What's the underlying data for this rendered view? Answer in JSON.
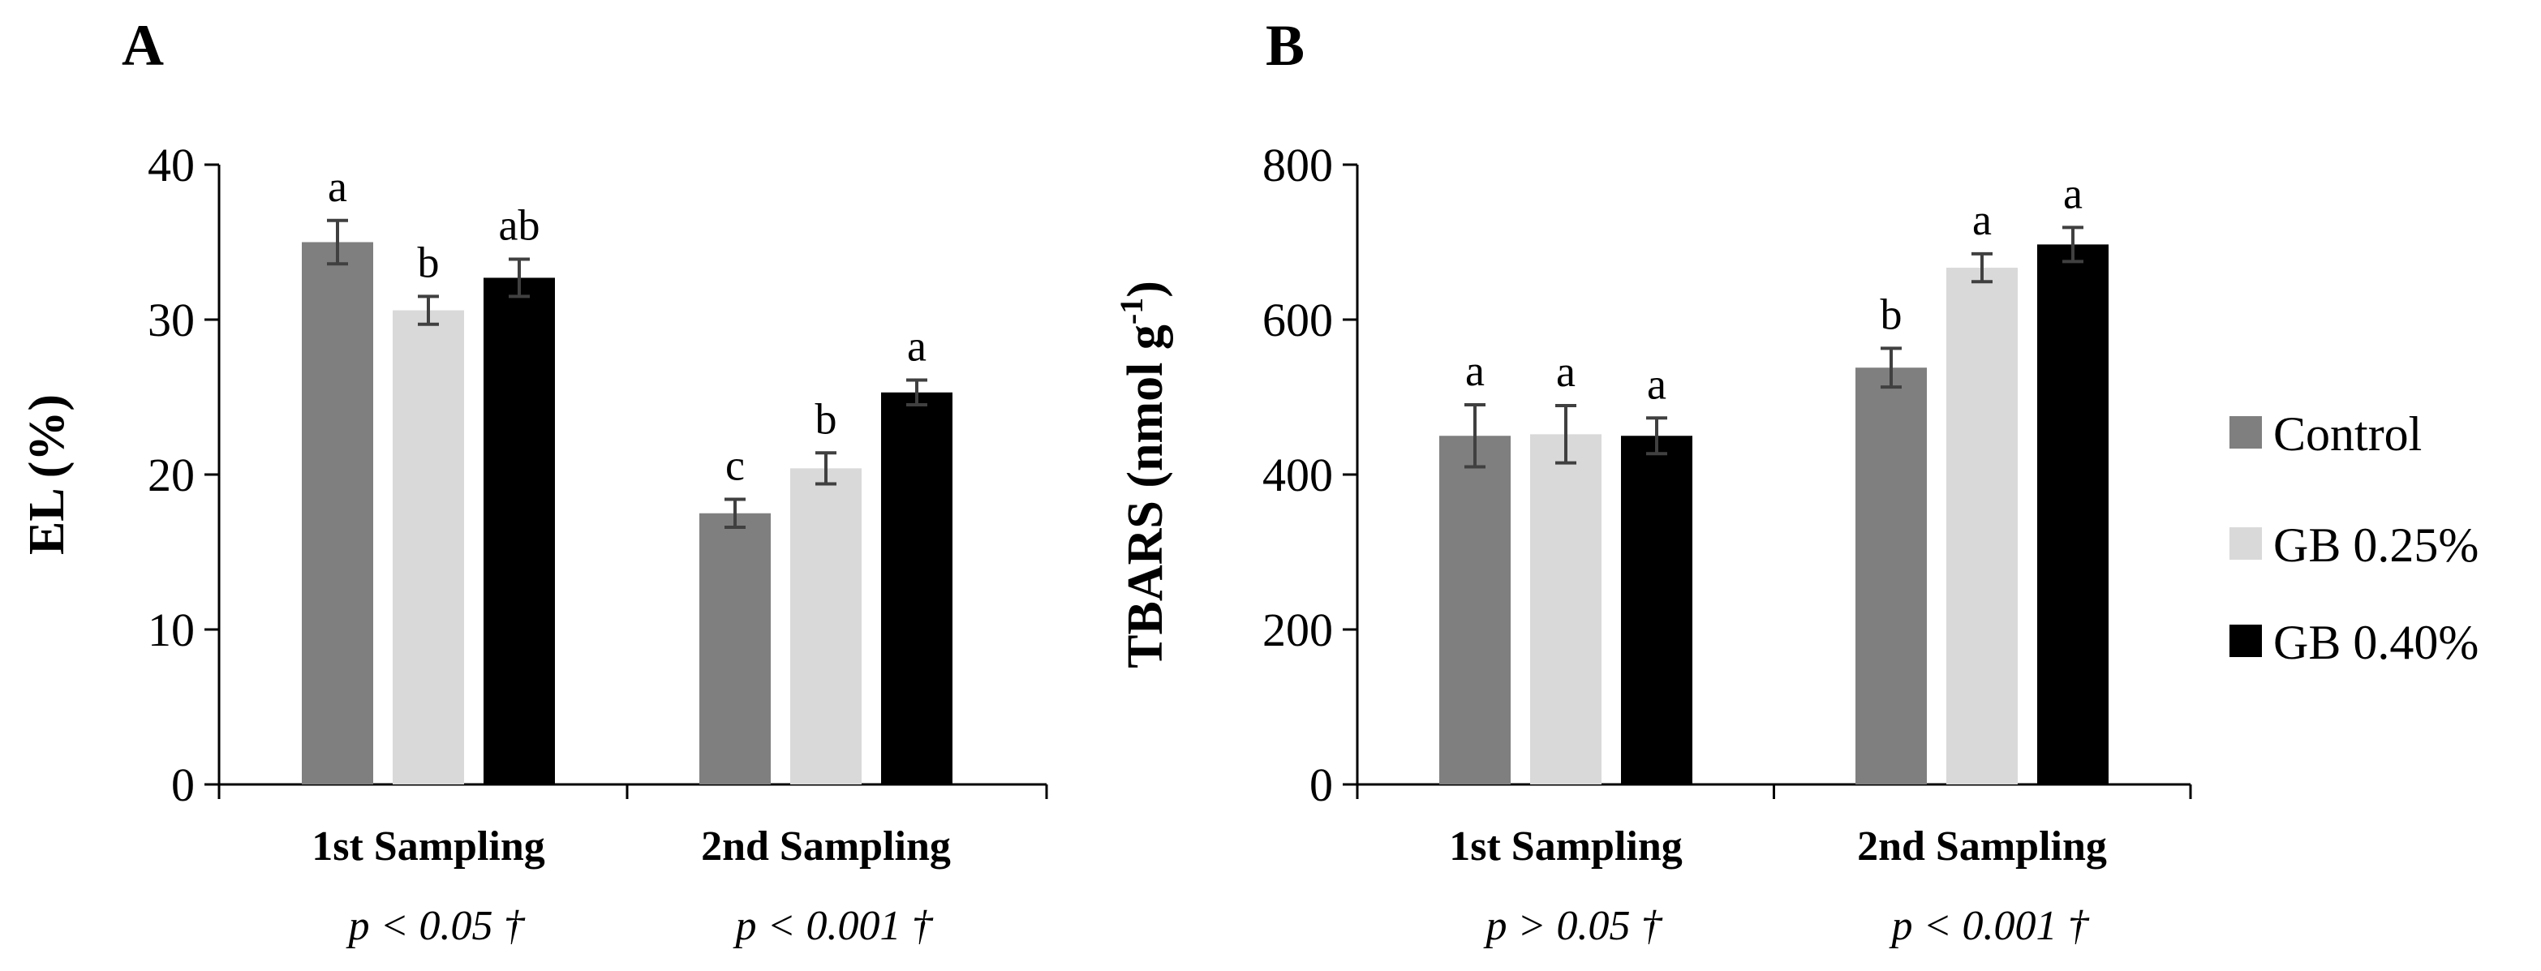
{
  "colors": {
    "Control": "#7f7f7f",
    "GB 0.25%": "#d9d9d9",
    "GB 0.40%": "#000000"
  },
  "legend": [
    {
      "name": "Control",
      "color": "#7f7f7f"
    },
    {
      "name": "GB 0.25%",
      "color": "#d9d9d9"
    },
    {
      "name": "GB 0.40%",
      "color": "#000000"
    }
  ],
  "chart_data": [
    {
      "panel": "A",
      "type": "bar",
      "ylabel": "EL (%)",
      "ylim": [
        0,
        40
      ],
      "yticks": [
        0,
        10,
        20,
        30,
        40
      ],
      "categories": [
        "1st Sampling",
        "2nd Sampling"
      ],
      "pvalues": [
        "p < 0.05 †",
        "p < 0.001 †"
      ],
      "series": [
        {
          "name": "Control",
          "values": [
            35.0,
            17.5
          ],
          "errors": [
            1.4,
            0.9
          ],
          "letters": [
            "a",
            "c"
          ]
        },
        {
          "name": "GB 0.25%",
          "values": [
            30.6,
            20.4
          ],
          "errors": [
            0.9,
            1.0
          ],
          "letters": [
            "b",
            "b"
          ]
        },
        {
          "name": "GB 0.40%",
          "values": [
            32.7,
            25.3
          ],
          "errors": [
            1.2,
            0.8
          ],
          "letters": [
            "ab",
            "a"
          ]
        }
      ]
    },
    {
      "panel": "B",
      "type": "bar",
      "ylabel": "TBARS (nmol g⁻¹)",
      "ylabel_main": "TBARS (nmol g",
      "ylabel_sup": "-1",
      "ylabel_end": ")",
      "ylim": [
        0,
        800
      ],
      "yticks": [
        0,
        200,
        400,
        600,
        800
      ],
      "categories": [
        "1st Sampling",
        "2nd Sampling"
      ],
      "pvalues": [
        "p > 0.05 †",
        "p < 0.001 †"
      ],
      "series": [
        {
          "name": "Control",
          "values": [
            450,
            538
          ],
          "errors": [
            40,
            25
          ],
          "letters": [
            "a",
            "b"
          ]
        },
        {
          "name": "GB 0.25%",
          "values": [
            452,
            667
          ],
          "errors": [
            37,
            18
          ],
          "letters": [
            "a",
            "a"
          ]
        },
        {
          "name": "GB 0.40%",
          "values": [
            450,
            697
          ],
          "errors": [
            23,
            22
          ],
          "letters": [
            "a",
            "a"
          ]
        }
      ]
    }
  ]
}
